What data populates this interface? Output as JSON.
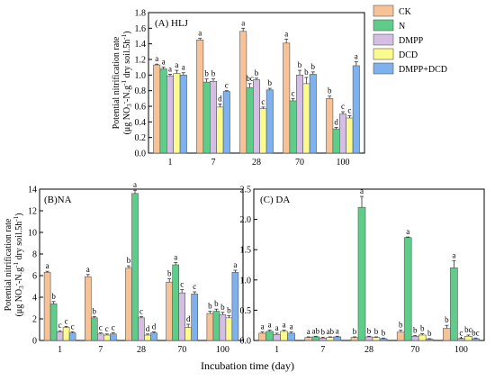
{
  "figure": {
    "xlabel": "Incubation time (day)",
    "ylabel_parts": {
      "top_line": [
        "(μg NO",
        "3",
        "-",
        "-N.g",
        "-1",
        " dry soil.5h",
        "-1",
        ")"
      ],
      "bottom_line": "Potential nitrification rate"
    }
  },
  "legend": [
    {
      "label": "CK",
      "color": "#f6c296"
    },
    {
      "label": "N",
      "color": "#5fcd8a"
    },
    {
      "label": "DMPP",
      "color": "#d5bde4"
    },
    {
      "label": "DCD",
      "color": "#fbfa8c"
    },
    {
      "label": "DMPP+DCD",
      "color": "#7db2ee"
    }
  ],
  "chart_data": [
    {
      "panel": "A",
      "type": "bar",
      "title": "(A) HLJ",
      "categories": [
        "1",
        "7",
        "28",
        "70",
        "100"
      ],
      "ylim": [
        0,
        1.8
      ],
      "yticks": [
        "0.0",
        "0.2",
        "0.4",
        "0.6",
        "0.8",
        "1.0",
        "1.2",
        "1.4",
        "1.6",
        "1.8"
      ],
      "series": [
        {
          "name": "CK",
          "values": [
            1.13,
            1.45,
            1.56,
            1.41,
            0.7
          ],
          "errors": [
            0.01,
            0.02,
            0.04,
            0.05,
            0.03
          ],
          "letters": [
            "a",
            "a",
            "a",
            "a",
            "b"
          ]
        },
        {
          "name": "N",
          "values": [
            1.08,
            0.91,
            0.84,
            0.67,
            0.31
          ],
          "errors": [
            0.02,
            0.04,
            0.05,
            0.03,
            0.02
          ],
          "letters": [
            "a",
            "b",
            "bc",
            "c",
            "d"
          ]
        },
        {
          "name": "DMPP",
          "values": [
            0.99,
            0.92,
            0.94,
            1.0,
            0.5
          ],
          "errors": [
            0.02,
            0.03,
            0.02,
            0.06,
            0.03
          ],
          "letters": [
            "a",
            "b",
            "b",
            "b",
            "c"
          ]
        },
        {
          "name": "DCD",
          "values": [
            1.02,
            0.59,
            0.57,
            0.89,
            0.45
          ],
          "errors": [
            0.04,
            0.04,
            0.02,
            0.08,
            0.03
          ],
          "letters": [
            "a",
            "d",
            "c",
            "b",
            "c"
          ]
        },
        {
          "name": "DMPP+DCD",
          "values": [
            1.0,
            0.79,
            0.81,
            1.01,
            1.12
          ],
          "errors": [
            0.03,
            0.01,
            0.02,
            0.03,
            0.05
          ],
          "letters": [
            "a",
            "c",
            "b",
            "b",
            "a"
          ]
        }
      ]
    },
    {
      "panel": "B",
      "type": "bar",
      "title": "(B)NA",
      "categories": [
        "1",
        "7",
        "28",
        "70",
        "100"
      ],
      "ylim": [
        0,
        14
      ],
      "yticks": [
        "0",
        "2",
        "4",
        "6",
        "8",
        "10",
        "12",
        "14"
      ],
      "series": [
        {
          "name": "CK",
          "values": [
            6.3,
            5.9,
            6.7,
            5.4,
            2.5
          ],
          "errors": [
            0.1,
            0.2,
            0.2,
            0.3,
            0.2
          ],
          "letters": [
            "a",
            "a",
            "b",
            "b",
            "b"
          ]
        },
        {
          "name": "N",
          "values": [
            3.4,
            2.1,
            13.6,
            7.0,
            2.7
          ],
          "errors": [
            0.2,
            0.1,
            0.3,
            0.2,
            0.2
          ],
          "letters": [
            "b",
            "b",
            "a",
            "a",
            "b"
          ]
        },
        {
          "name": "DMPP",
          "values": [
            0.8,
            0.6,
            2.1,
            4.4,
            2.4
          ],
          "errors": [
            0.1,
            0.1,
            0.1,
            0.3,
            0.2
          ],
          "letters": [
            "c",
            "c",
            "c",
            "c",
            "b"
          ]
        },
        {
          "name": "DCD",
          "values": [
            1.2,
            0.5,
            0.5,
            1.2,
            2.1
          ],
          "errors": [
            0.1,
            0.1,
            0.1,
            0.3,
            0.2
          ],
          "letters": [
            "c",
            "c",
            "d",
            "d",
            "b"
          ]
        },
        {
          "name": "DMPP+DCD",
          "values": [
            0.7,
            0.6,
            0.7,
            4.3,
            6.3
          ],
          "errors": [
            0.1,
            0.1,
            0.1,
            0.2,
            0.2
          ],
          "letters": [
            "c",
            "c",
            "d",
            "c",
            "a"
          ]
        }
      ]
    },
    {
      "panel": "C",
      "type": "bar",
      "title": "(C) DA",
      "categories": [
        "1",
        "7",
        "28",
        "70",
        "100"
      ],
      "ylim": [
        0,
        2.5
      ],
      "yticks": [
        "0.0",
        "0.5",
        "1.0",
        "1.5",
        "2.0",
        "2.5"
      ],
      "series": [
        {
          "name": "CK",
          "values": [
            0.12,
            0.05,
            0.05,
            0.14,
            0.2
          ],
          "errors": [
            0.02,
            0.01,
            0.01,
            0.03,
            0.05
          ],
          "letters": [
            "a",
            "a",
            "b",
            "b",
            "b"
          ]
        },
        {
          "name": "N",
          "values": [
            0.15,
            0.06,
            2.2,
            1.7,
            1.2
          ],
          "errors": [
            0.02,
            0.01,
            0.18,
            0.01,
            0.12
          ],
          "letters": [
            "a",
            "ab",
            "a",
            "a",
            "a"
          ]
        },
        {
          "name": "DMPP",
          "values": [
            0.1,
            0.04,
            0.06,
            0.07,
            0.03
          ],
          "errors": [
            0.02,
            0.01,
            0.01,
            0.01,
            0.01
          ],
          "letters": [
            "a",
            "b",
            "b",
            "b",
            "c"
          ]
        },
        {
          "name": "DCD",
          "values": [
            0.15,
            0.05,
            0.05,
            0.09,
            0.07
          ],
          "errors": [
            0.02,
            0.01,
            0.01,
            0.02,
            0.02
          ],
          "letters": [
            "a",
            "ab",
            "b",
            "b",
            "bc"
          ]
        },
        {
          "name": "DMPP+DCD",
          "values": [
            0.12,
            0.06,
            0.03,
            0.02,
            0.03
          ],
          "errors": [
            0.02,
            0.01,
            0.01,
            0.01,
            0.01
          ],
          "letters": [
            "a",
            "a",
            "b",
            "b",
            "bc"
          ]
        }
      ]
    }
  ]
}
